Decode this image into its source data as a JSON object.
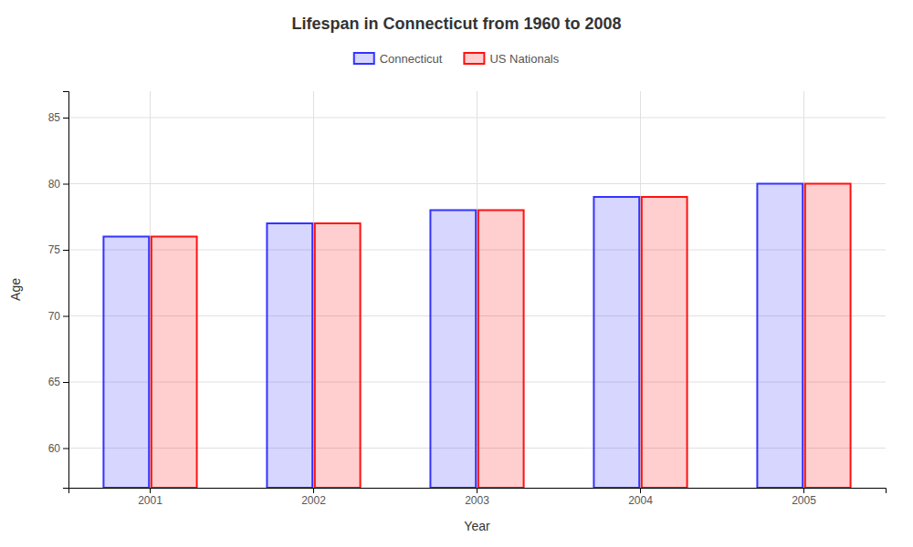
{
  "chart_data": {
    "type": "bar",
    "title": "Lifespan in Connecticut from 1960 to 2008",
    "x_label": "Year",
    "y_label": "Age",
    "categories": [
      "2001",
      "2002",
      "2003",
      "2004",
      "2005"
    ],
    "series": [
      {
        "name": "Connecticut",
        "color": "#3333ff",
        "values": [
          76,
          77,
          78,
          79,
          80
        ]
      },
      {
        "name": "US Nationals",
        "color": "#ff1111",
        "values": [
          76,
          77,
          78,
          79,
          80
        ]
      }
    ],
    "ylim": [
      57,
      87
    ],
    "yticks": [
      60,
      65,
      70,
      75,
      80,
      85
    ],
    "grid": true,
    "legend": "top"
  }
}
